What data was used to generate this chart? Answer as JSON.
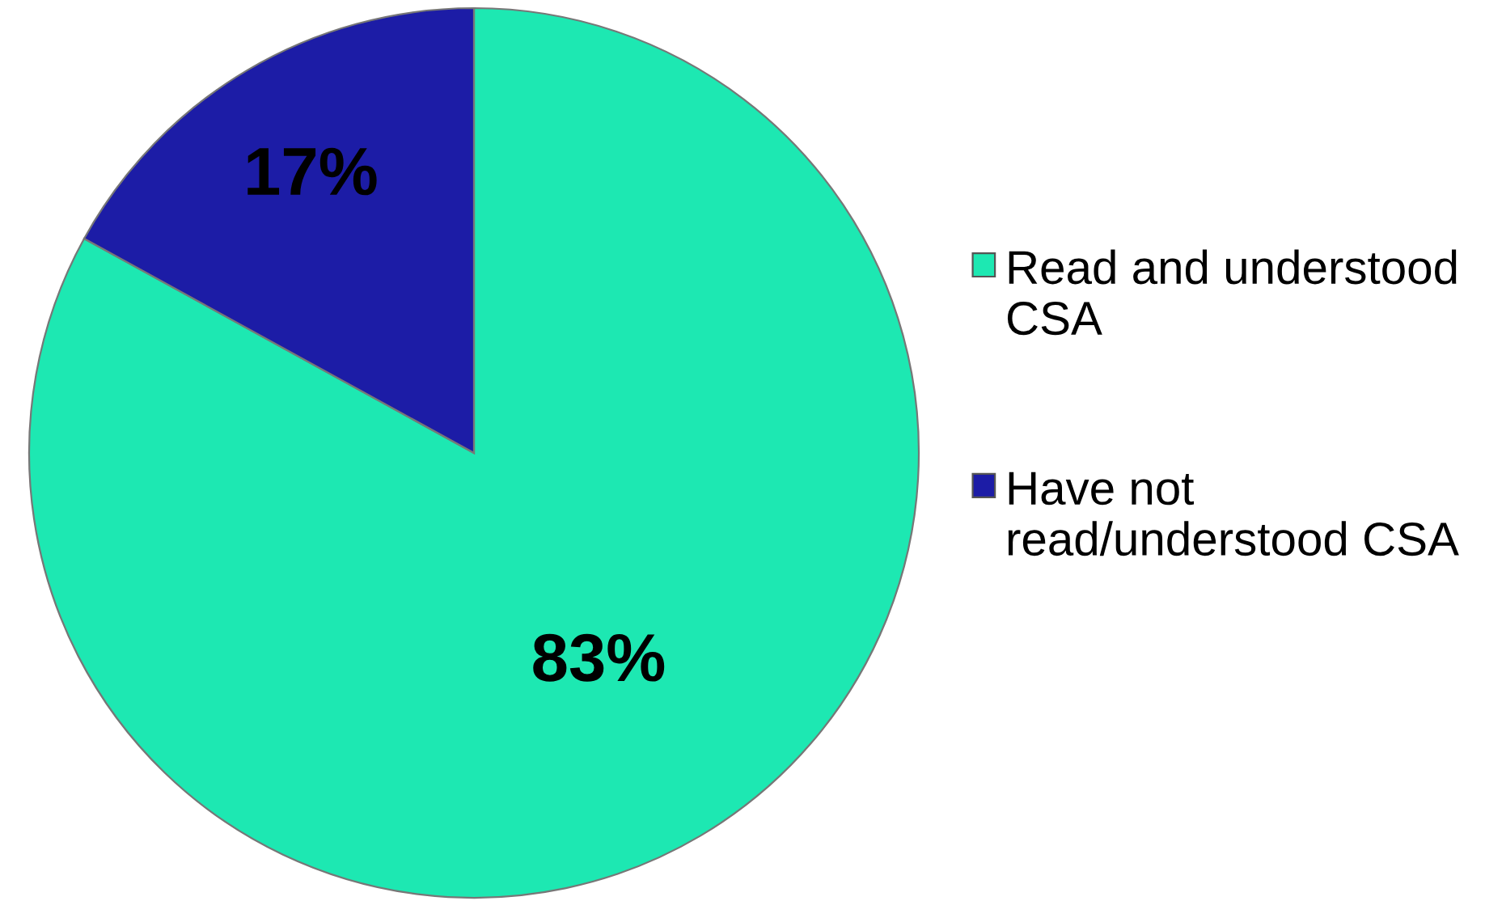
{
  "chart_data": {
    "type": "pie",
    "categories": [
      "Read and understood CSA",
      "Have not read/understood CSA"
    ],
    "values": [
      83,
      17
    ],
    "value_labels": [
      "83%",
      "17%"
    ],
    "colors": [
      "#1de8b2",
      "#1c1ca6"
    ],
    "legend": "right"
  }
}
